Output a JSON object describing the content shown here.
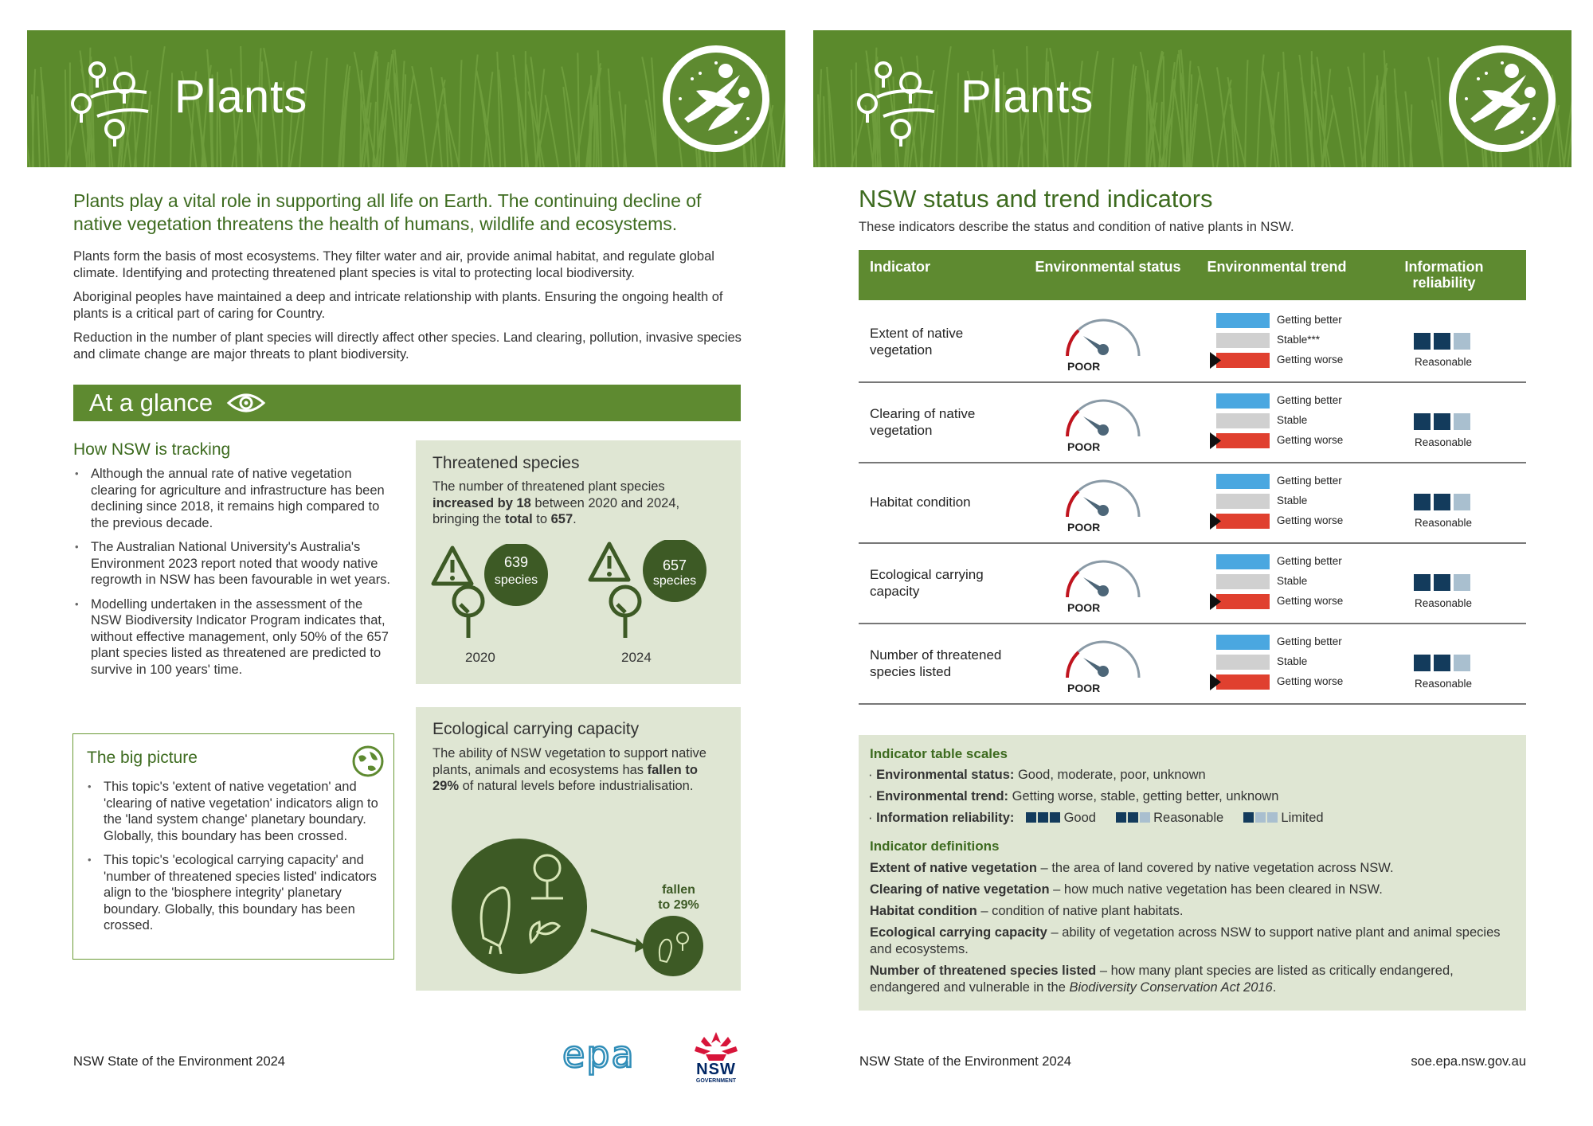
{
  "left": {
    "banner_title": "Plants",
    "lede": "Plants play a vital role in supporting all life on Earth. The continuing decline of native vegetation threatens the health of humans, wildlife and ecosystems.",
    "paragraphs": [
      "Plants form the basis of most ecosystems. They filter water and air, provide animal habitat, and regulate global climate. Identifying and protecting threatened plant species is vital to protecting local biodiversity.",
      "Aboriginal peoples have maintained a deep and intricate relationship with plants. Ensuring the ongoing health of plants is a critical part of caring for Country.",
      "Reduction in the number of plant species will directly affect other species. Land clearing, pollution, invasive species and climate change are major threats to plant biodiversity."
    ],
    "glance_title": "At a glance",
    "tracking_title": "How NSW is tracking",
    "tracking_items": [
      "Although the annual rate of native vegetation clearing for agriculture and infrastructure has been declining since 2018, it remains high compared to the previous decade.",
      "The Australian National University's Australia's Environment 2023 report noted that woody native regrowth in NSW has been favourable in wet years.",
      "Modelling undertaken in the assessment of the NSW Biodiversity Indicator Program indicates that, without effective management, only 50% of the 657 plant species listed as threatened are predicted to survive in 100 years' time."
    ],
    "big_picture_title": "The big picture",
    "big_picture_items": [
      "This topic's 'extent of native vegetation' and 'clearing of native vegetation' indicators align to the 'land system change' planetary boundary. Globally, this boundary has been crossed.",
      "This topic's 'ecological carrying capacity' and 'number of threatened species listed' indicators align to the 'biosphere integrity' planetary boundary. Globally, this boundary has been crossed."
    ],
    "threatened": {
      "title": "Threatened species",
      "text_1": "The number of threatened plant species ",
      "text_bold_1": "increased by 18",
      "text_2": " between 2020 and 2024, bringing the ",
      "text_bold_2": "total",
      "text_3": " to ",
      "text_bold_3": "657",
      "text_4": ".",
      "count_2020": "639",
      "count_2024": "657",
      "species_label": "species",
      "year_2020": "2020",
      "year_2024": "2024"
    },
    "carrying": {
      "title": "Ecological carrying capacity",
      "text_1": "The ability of NSW vegetation to support native plants, animals and ecosystems has ",
      "text_bold": "fallen to 29%",
      "text_2": " of natural levels before industrialisation.",
      "fallen_1": "fallen",
      "fallen_2": "to 29%"
    },
    "footer": "NSW State of the Environment 2024",
    "epa_logo": "nsw epa",
    "nsw_logo": "NSW",
    "nsw_gov": "GOVERNMENT"
  },
  "right": {
    "banner_title": "Plants",
    "heading": "NSW status and trend indicators",
    "subheading": "These indicators describe the status and condition of native plants in NSW.",
    "columns": [
      "Indicator",
      "Environmental status",
      "Environmental trend",
      "Information reliability"
    ],
    "rows": [
      {
        "name": "Extent of native vegetation",
        "status": "POOR",
        "trend": [
          "Getting better",
          "Stable***",
          "Getting worse"
        ],
        "reliability": "Reasonable",
        "reliability_filled": 2
      },
      {
        "name": "Clearing of native vegetation",
        "status": "POOR",
        "trend": [
          "Getting better",
          "Stable",
          "Getting worse"
        ],
        "reliability": "Reasonable",
        "reliability_filled": 2
      },
      {
        "name": "Habitat condition",
        "status": "POOR",
        "trend": [
          "Getting better",
          "Stable",
          "Getting worse"
        ],
        "reliability": "Reasonable",
        "reliability_filled": 2
      },
      {
        "name": "Ecological carrying capacity",
        "status": "POOR",
        "trend": [
          "Getting better",
          "Stable",
          "Getting worse"
        ],
        "reliability": "Reasonable",
        "reliability_filled": 2
      },
      {
        "name": "Number of threatened species listed",
        "status": "POOR",
        "trend": [
          "Getting better",
          "Stable",
          "Getting worse"
        ],
        "reliability": "Reasonable",
        "reliability_filled": 2
      }
    ],
    "scales_title": "Indicator table scales",
    "scale_status_label": "Environmental status:",
    "scale_status_text": " Good, moderate, poor, unknown",
    "scale_trend_label": "Environmental trend:",
    "scale_trend_text": " Getting worse, stable, getting better, unknown",
    "scale_rel_label": "Information reliability:",
    "scale_rel_good": "Good",
    "scale_rel_reasonable": "Reasonable",
    "scale_rel_limited": "Limited",
    "definitions_title": "Indicator definitions",
    "definitions": [
      {
        "term": "Extent of native vegetation",
        "text": " – the area of land covered by native vegetation across NSW."
      },
      {
        "term": "Clearing of native vegetation",
        "text": " – how much native vegetation has been cleared in NSW."
      },
      {
        "term": "Habitat condition",
        "text": " – condition of native plant habitats."
      },
      {
        "term": "Ecological carrying capacity",
        "text": " – ability of vegetation across NSW to support native plant and animal species and ecosystems."
      },
      {
        "term": "Number of threatened species listed",
        "text": " – how many plant species are listed as critically endangered, endangered and vulnerable in the ",
        "italic": "Biodiversity Conservation Act 2016",
        "end": "."
      }
    ],
    "footer": "NSW State of the Environment 2024",
    "url": "soe.epa.nsw.gov.au"
  },
  "colors": {
    "green": "#5e8a30",
    "dark_green": "#3d5a25",
    "panel": "#dfe6d3",
    "trend_better": "#4aa7e0",
    "trend_stable": "#d0d0d0",
    "trend_worse": "#e0402f",
    "rel_filled": "#133b5c",
    "rel_empty": "#a9bfcf"
  }
}
